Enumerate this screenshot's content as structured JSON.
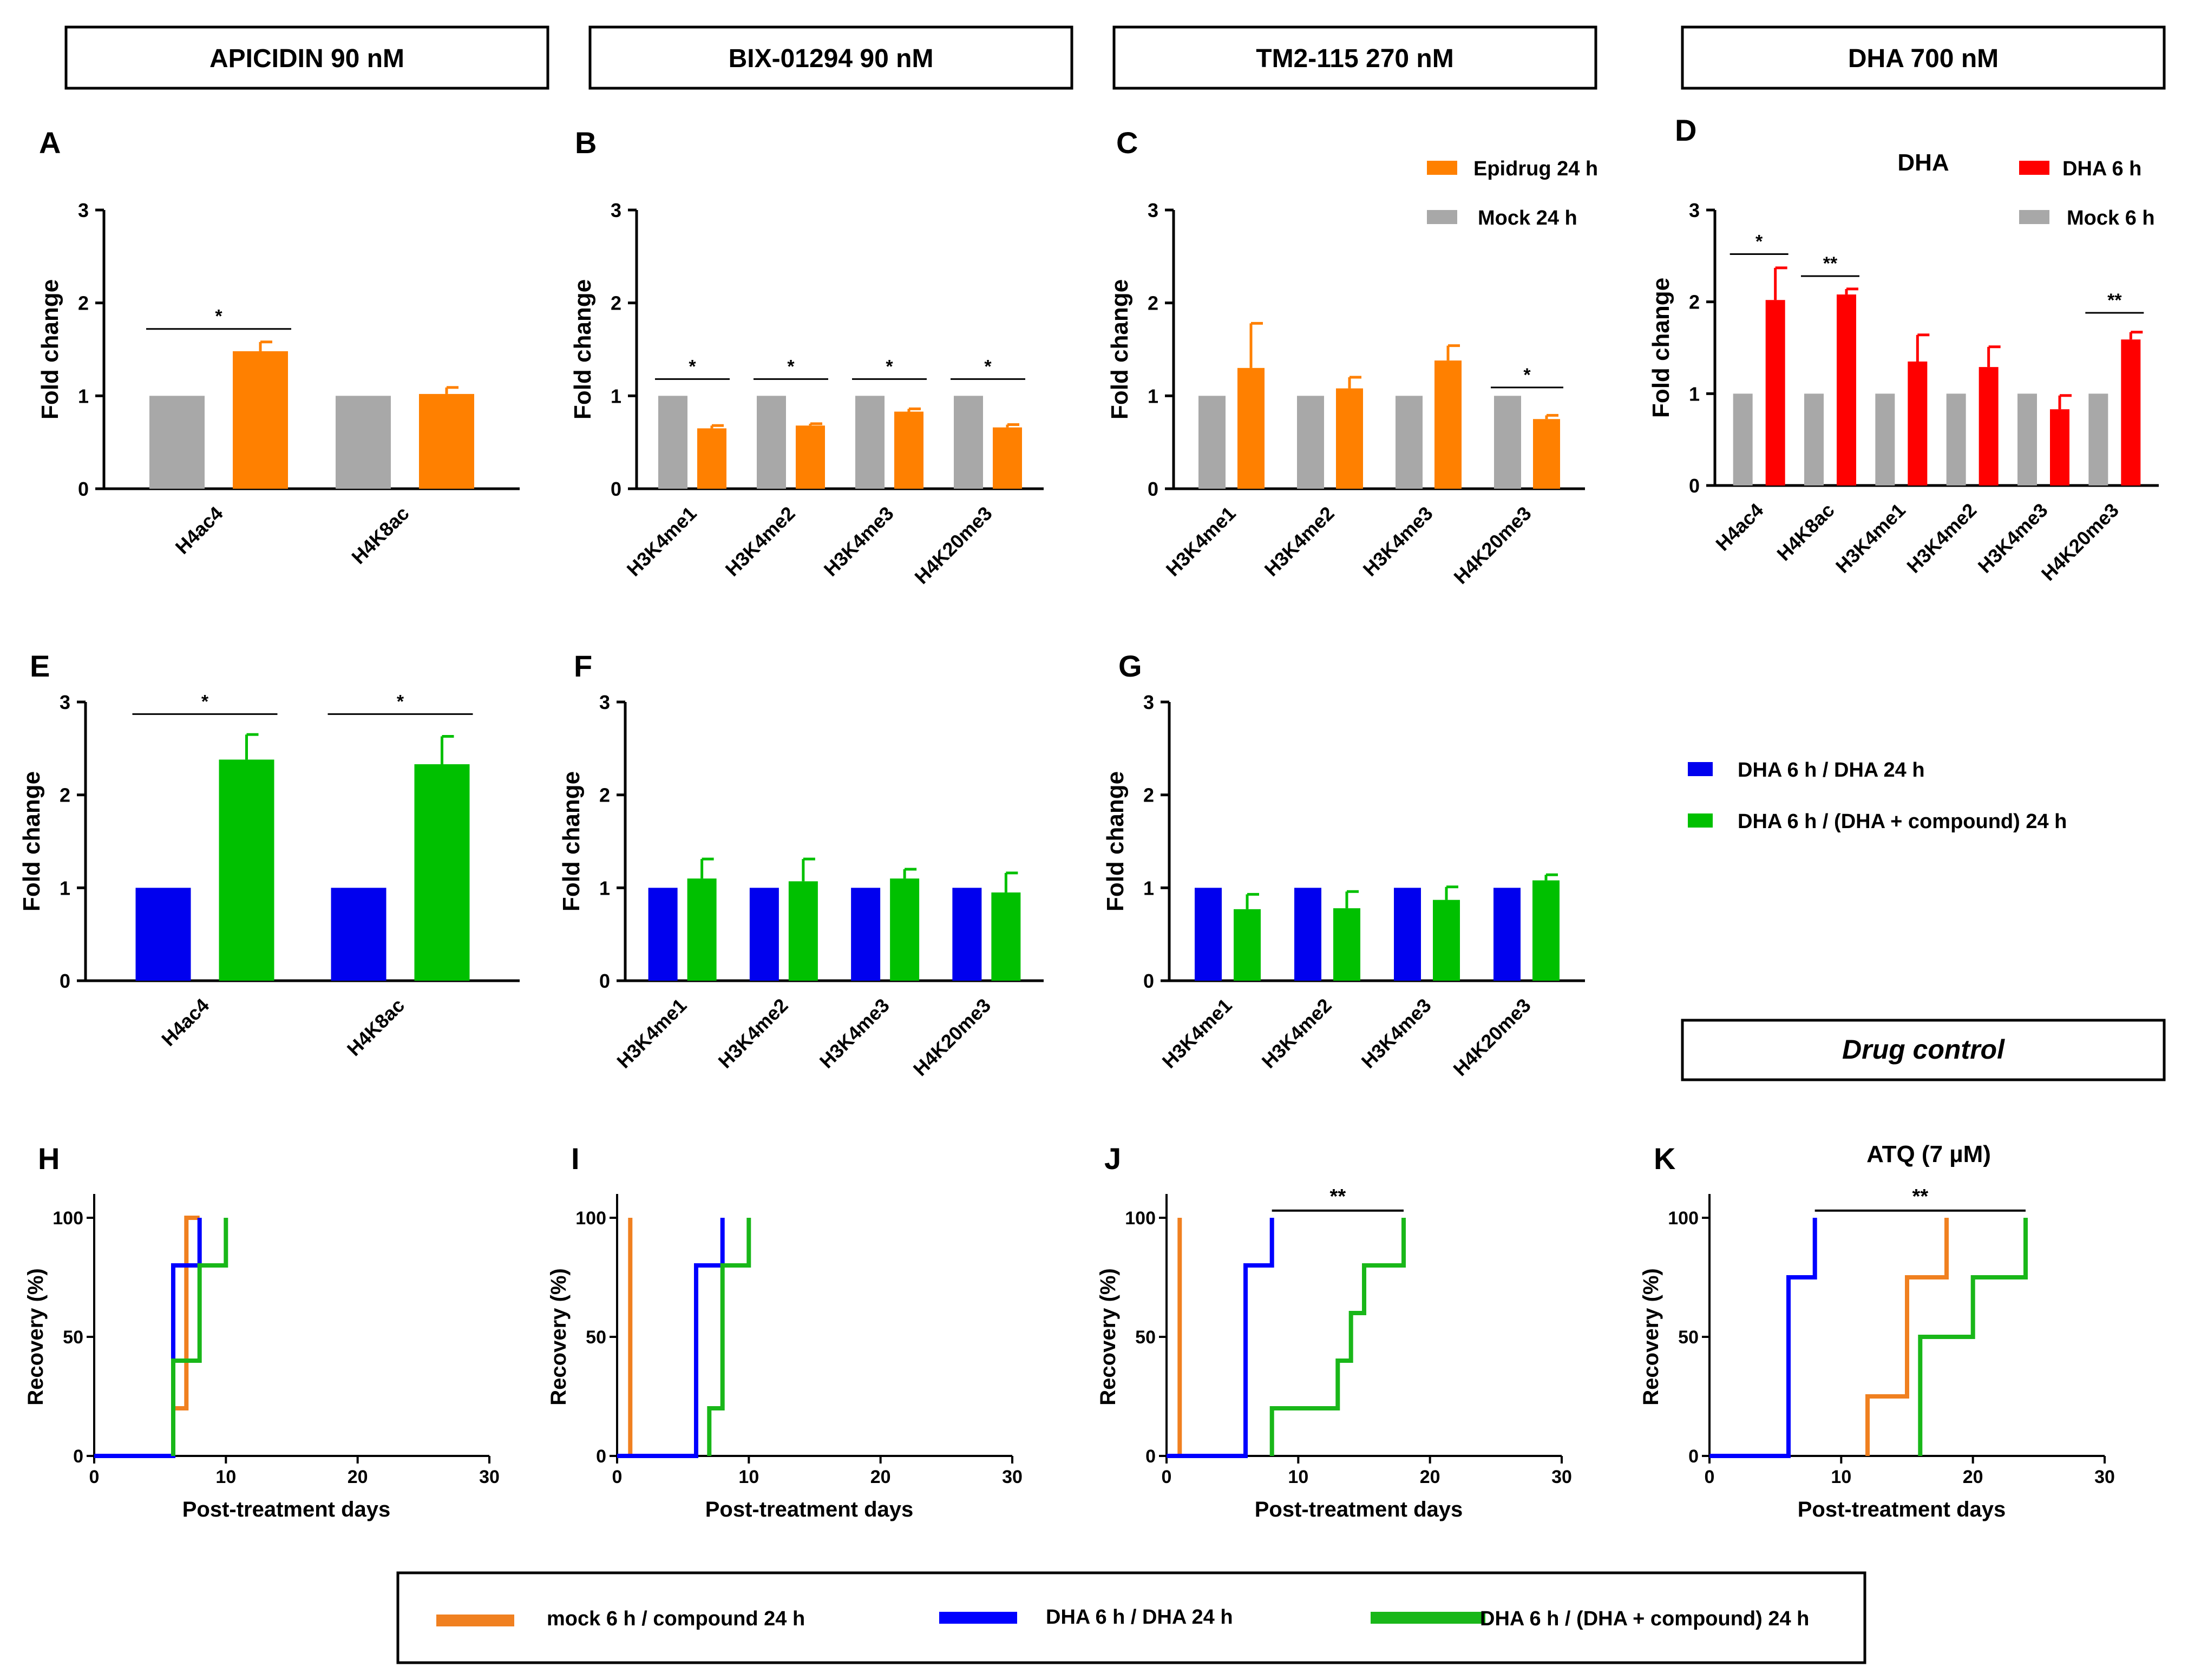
{
  "colors": {
    "gray": "#A8A8A8",
    "orange": "#FF8000",
    "red": "#FF0000",
    "blue": "#0000EE",
    "green": "#00C000",
    "orange_line": "#F08020",
    "blue_line": "#0000FF",
    "green_line": "#19B719",
    "black": "#000000"
  },
  "headers": [
    "APICIDIN 90 nM",
    "BIX-01294 90 nM",
    "TM2-115 270 nM",
    "DHA 700 nM"
  ],
  "drug_control_label": "Drug control",
  "legend_top": {
    "items": [
      {
        "label": "Epidrug 24 h",
        "color": "#FF8000"
      },
      {
        "label": "Mock 24 h",
        "color": "#A8A8A8"
      }
    ]
  },
  "legend_d": {
    "title": "DHA",
    "items": [
      {
        "label": "DHA 6 h",
        "color": "#FF0000"
      },
      {
        "label": "Mock 6 h",
        "color": "#A8A8A8"
      }
    ]
  },
  "legend_mid": {
    "items": [
      {
        "label": "DHA 6 h / DHA 24 h",
        "color": "#0000EE"
      },
      {
        "label": "DHA 6 h / (DHA + compound) 24 h",
        "color": "#00C000"
      }
    ]
  },
  "legend_bottom": {
    "items": [
      {
        "label": "mock 6 h / compound 24 h",
        "color": "#F08020"
      },
      {
        "label": "DHA 6 h / DHA 24 h",
        "color": "#0000FF"
      },
      {
        "label": "DHA 6 h / (DHA + compound) 24 h",
        "color": "#19B719"
      }
    ]
  },
  "chart_data": [
    {
      "panel": "A",
      "type": "bar",
      "ylabel": "Fold change",
      "ylim": [
        0,
        3
      ],
      "yticks": [
        0,
        1,
        2,
        3
      ],
      "categories": [
        "H4ac4",
        "H4K8ac"
      ],
      "series": [
        {
          "name": "Mock 24 h",
          "values": [
            1.0,
            1.0
          ],
          "errors": [
            0,
            0
          ]
        },
        {
          "name": "Epidrug 24 h",
          "values": [
            1.48,
            1.02
          ],
          "errors": [
            0.1,
            0.07
          ]
        }
      ],
      "significance": [
        {
          "label": "*",
          "category": "H4ac4",
          "y": 1.72
        }
      ]
    },
    {
      "panel": "B",
      "type": "bar",
      "ylabel": "Fold change",
      "ylim": [
        0,
        3
      ],
      "yticks": [
        0,
        1,
        2,
        3
      ],
      "categories": [
        "H3K4me1",
        "H3K4me2",
        "H3K4me3",
        "H4K20me3"
      ],
      "series": [
        {
          "name": "Mock 24 h",
          "values": [
            1.0,
            1.0,
            1.0,
            1.0
          ],
          "errors": [
            0,
            0,
            0,
            0
          ]
        },
        {
          "name": "Epidrug 24 h",
          "values": [
            0.65,
            0.68,
            0.83,
            0.66
          ],
          "errors": [
            0.03,
            0.02,
            0.03,
            0.03
          ]
        }
      ],
      "significance": [
        {
          "label": "*",
          "category": "H3K4me1",
          "y": 1.18
        },
        {
          "label": "*",
          "category": "H3K4me2",
          "y": 1.18
        },
        {
          "label": "*",
          "category": "H3K4me3",
          "y": 1.18
        },
        {
          "label": "*",
          "category": "H4K20me3",
          "y": 1.18
        }
      ]
    },
    {
      "panel": "C",
      "type": "bar",
      "ylabel": "Fold change",
      "ylim": [
        0,
        3
      ],
      "yticks": [
        0,
        1,
        2,
        3
      ],
      "categories": [
        "H3K4me1",
        "H3K4me2",
        "H3K4me3",
        "H4K20me3"
      ],
      "series": [
        {
          "name": "Mock 24 h",
          "values": [
            1.0,
            1.0,
            1.0,
            1.0
          ],
          "errors": [
            0,
            0,
            0,
            0
          ]
        },
        {
          "name": "Epidrug 24 h",
          "values": [
            1.3,
            1.08,
            1.38,
            0.75
          ],
          "errors": [
            0.48,
            0.12,
            0.16,
            0.04
          ]
        }
      ],
      "significance": [
        {
          "label": "*",
          "category": "H4K20me3",
          "y": 1.09
        }
      ]
    },
    {
      "panel": "D",
      "type": "bar",
      "ylabel": "Fold change",
      "ylim": [
        0,
        3
      ],
      "yticks": [
        0,
        1,
        2,
        3
      ],
      "categories": [
        "H4ac4",
        "H4K8ac",
        "H3K4me1",
        "H3K4me2",
        "H3K4me3",
        "H4K20me3"
      ],
      "series": [
        {
          "name": "Mock 6 h",
          "values": [
            1.0,
            1.0,
            1.0,
            1.0,
            1.0,
            1.0
          ],
          "errors": [
            0,
            0,
            0,
            0,
            0,
            0
          ]
        },
        {
          "name": "DHA 6 h",
          "values": [
            2.02,
            2.08,
            1.35,
            1.29,
            0.83,
            1.59
          ],
          "errors": [
            0.35,
            0.06,
            0.29,
            0.22,
            0.15,
            0.08
          ]
        }
      ],
      "significance": [
        {
          "label": "*",
          "category": "H4ac4",
          "y": 2.52
        },
        {
          "label": "**",
          "category": "H4K8ac",
          "y": 2.28
        },
        {
          "label": "**",
          "category": "H4K20me3",
          "y": 1.88
        }
      ]
    },
    {
      "panel": "E",
      "type": "bar",
      "ylabel": "Fold change",
      "ylim": [
        0,
        3
      ],
      "yticks": [
        0,
        1,
        2,
        3
      ],
      "categories": [
        "H4ac4",
        "H4K8ac"
      ],
      "series": [
        {
          "name": "DHA 6 h / DHA 24 h",
          "values": [
            1.0,
            1.0
          ],
          "errors": [
            0,
            0
          ]
        },
        {
          "name": "DHA 6 h / (DHA + compound) 24 h",
          "values": [
            2.38,
            2.33
          ],
          "errors": [
            0.27,
            0.3
          ]
        }
      ],
      "significance": [
        {
          "label": "*",
          "category": "H4ac4",
          "y": 2.87
        },
        {
          "label": "*",
          "category": "H4K8ac",
          "y": 2.87
        }
      ]
    },
    {
      "panel": "F",
      "type": "bar",
      "ylabel": "Fold change",
      "ylim": [
        0,
        3
      ],
      "yticks": [
        0,
        1,
        2,
        3
      ],
      "categories": [
        "H3K4me1",
        "H3K4me2",
        "H3K4me3",
        "H4K20me3"
      ],
      "series": [
        {
          "name": "DHA 6 h / DHA 24 h",
          "values": [
            1.0,
            1.0,
            1.0,
            1.0
          ],
          "errors": [
            0,
            0,
            0,
            0
          ]
        },
        {
          "name": "DHA 6 h / (DHA + compound) 24 h",
          "values": [
            1.1,
            1.07,
            1.1,
            0.95
          ],
          "errors": [
            0.21,
            0.24,
            0.1,
            0.21
          ]
        }
      ],
      "significance": []
    },
    {
      "panel": "G",
      "type": "bar",
      "ylabel": "Fold change",
      "ylim": [
        0,
        3
      ],
      "yticks": [
        0,
        1,
        2,
        3
      ],
      "categories": [
        "H3K4me1",
        "H3K4me2",
        "H3K4me3",
        "H4K20me3"
      ],
      "series": [
        {
          "name": "DHA 6 h / DHA 24 h",
          "values": [
            1.0,
            1.0,
            1.0,
            1.0
          ],
          "errors": [
            0,
            0,
            0,
            0
          ]
        },
        {
          "name": "DHA 6 h / (DHA + compound) 24 h",
          "values": [
            0.77,
            0.78,
            0.87,
            1.08
          ],
          "errors": [
            0.16,
            0.18,
            0.14,
            0.06
          ]
        }
      ],
      "significance": []
    },
    {
      "panel": "H",
      "type": "line",
      "step": true,
      "xlabel": "Post-treatment days",
      "ylabel": "Recovery (%)",
      "xlim": [
        0,
        30
      ],
      "ylim": [
        0,
        110
      ],
      "xticks": [
        0,
        10,
        20,
        30
      ],
      "yticks": [
        0,
        50,
        100
      ],
      "series": [
        {
          "name": "mock 6 h / compound 24 h",
          "x": [
            6,
            6,
            7,
            7,
            8
          ],
          "y": [
            0,
            20,
            60,
            100,
            100
          ]
        },
        {
          "name": "DHA 6 h / DHA 24 h",
          "x": [
            0,
            6,
            8
          ],
          "y": [
            0,
            80,
            100
          ]
        },
        {
          "name": "DHA 6 h / (DHA + compound) 24 h",
          "x": [
            6,
            8,
            10
          ],
          "y": [
            40,
            80,
            100
          ]
        }
      ]
    },
    {
      "panel": "I",
      "type": "line",
      "step": true,
      "xlabel": "Post-treatment days",
      "ylabel": "Recovery (%)",
      "xlim": [
        0,
        30
      ],
      "ylim": [
        0,
        110
      ],
      "xticks": [
        0,
        10,
        20,
        30
      ],
      "yticks": [
        0,
        50,
        100
      ],
      "series": [
        {
          "name": "mock 6 h / compound 24 h",
          "x": [
            1
          ],
          "y": [
            100
          ]
        },
        {
          "name": "DHA 6 h / DHA 24 h",
          "x": [
            0,
            6,
            8
          ],
          "y": [
            0,
            80,
            100
          ]
        },
        {
          "name": "DHA 6 h / (DHA + compound) 24 h",
          "x": [
            7,
            8,
            10
          ],
          "y": [
            20,
            80,
            100
          ]
        }
      ]
    },
    {
      "panel": "J",
      "type": "line",
      "step": true,
      "xlabel": "Post-treatment days",
      "ylabel": "Recovery (%)",
      "xlim": [
        0,
        30
      ],
      "ylim": [
        0,
        110
      ],
      "xticks": [
        0,
        10,
        20,
        30
      ],
      "yticks": [
        0,
        50,
        100
      ],
      "series": [
        {
          "name": "mock 6 h / compound 24 h",
          "x": [
            1
          ],
          "y": [
            100
          ]
        },
        {
          "name": "DHA 6 h / DHA 24 h",
          "x": [
            0,
            6,
            8
          ],
          "y": [
            0,
            80,
            100
          ]
        },
        {
          "name": "DHA 6 h / (DHA + compound) 24 h",
          "x": [
            8,
            13,
            14,
            15,
            18
          ],
          "y": [
            20,
            40,
            60,
            80,
            100
          ]
        }
      ],
      "significance": [
        {
          "label": "**",
          "x1": 8,
          "x2": 18,
          "y": 103
        }
      ]
    },
    {
      "panel": "K",
      "title": "ATQ (7 µM)",
      "type": "line",
      "step": true,
      "xlabel": "Post-treatment days",
      "ylabel": "Recovery (%)",
      "xlim": [
        0,
        30
      ],
      "ylim": [
        0,
        110
      ],
      "xticks": [
        0,
        10,
        20,
        30
      ],
      "yticks": [
        0,
        50,
        100
      ],
      "series": [
        {
          "name": "mock 6 h / compound 24 h",
          "x": [
            12,
            15,
            18
          ],
          "y": [
            25,
            75,
            100
          ]
        },
        {
          "name": "DHA 6 h / DHA 24 h",
          "x": [
            0,
            6,
            8
          ],
          "y": [
            0,
            75,
            100
          ]
        },
        {
          "name": "DHA 6 h / (DHA + compound) 24 h",
          "x": [
            16,
            20,
            24
          ],
          "y": [
            50,
            75,
            100
          ]
        }
      ],
      "significance": [
        {
          "label": "**",
          "x1": 8,
          "x2": 24,
          "y": 103
        }
      ]
    }
  ]
}
